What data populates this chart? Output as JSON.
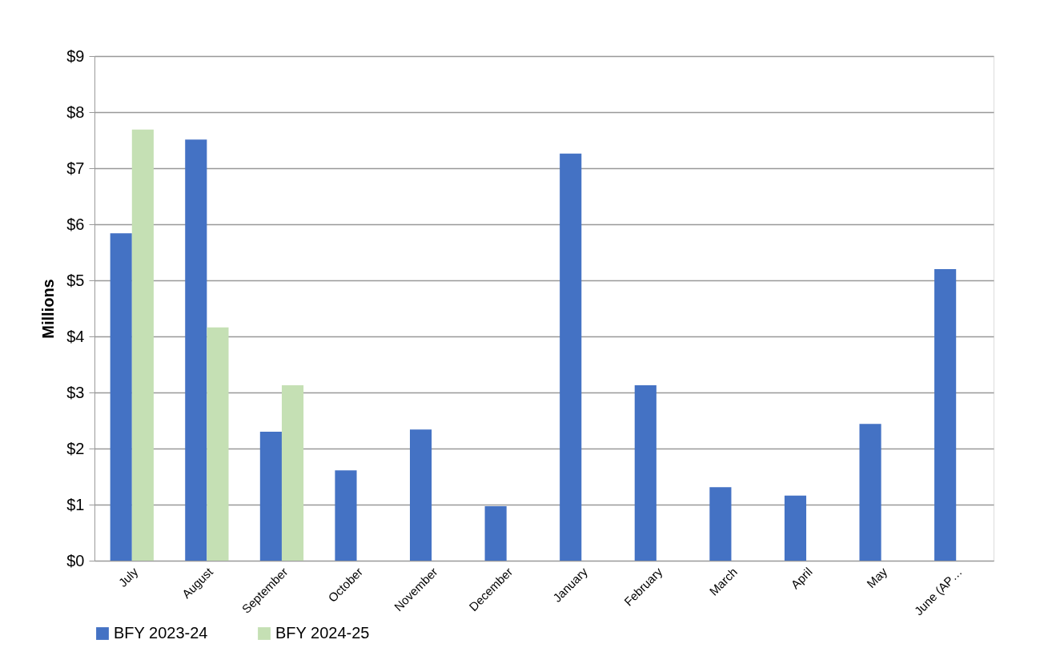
{
  "chart_data": {
    "type": "bar",
    "ylabel": "Millions",
    "categories": [
      "July",
      "August",
      "September",
      "October",
      "November",
      "December",
      "January",
      "February",
      "March",
      "April",
      "May",
      "June (AP…"
    ],
    "series": [
      {
        "name": "BFY 2023-24",
        "color": "#4472c4",
        "values": [
          5.84,
          7.51,
          2.3,
          1.61,
          2.34,
          0.97,
          7.26,
          3.13,
          1.31,
          1.16,
          2.44,
          5.2
        ]
      },
      {
        "name": "BFY 2024-25",
        "color": "#c5e0b4",
        "values": [
          7.69,
          4.16,
          3.13,
          null,
          null,
          null,
          null,
          null,
          null,
          null,
          null,
          null
        ]
      }
    ],
    "ylim": [
      0,
      9
    ],
    "yticks": [
      {
        "value": 0,
        "label": "$0"
      },
      {
        "value": 1,
        "label": "$1"
      },
      {
        "value": 2,
        "label": "$2"
      },
      {
        "value": 3,
        "label": "$3"
      },
      {
        "value": 4,
        "label": "$4"
      },
      {
        "value": 5,
        "label": "$5"
      },
      {
        "value": 6,
        "label": "$6"
      },
      {
        "value": 7,
        "label": "$7"
      },
      {
        "value": 8,
        "label": "$8"
      },
      {
        "value": 9,
        "label": "$9"
      }
    ],
    "grid": "y",
    "legend": "bottom"
  }
}
